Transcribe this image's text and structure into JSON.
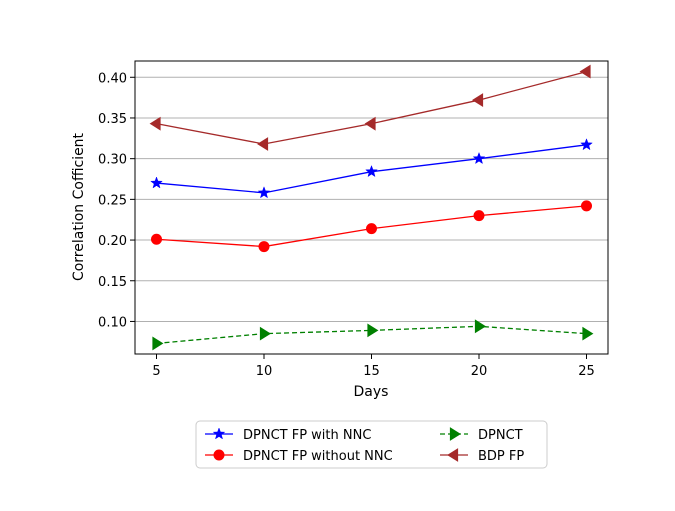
{
  "chart_data": {
    "type": "line",
    "title": "",
    "xlabel": "Days",
    "ylabel": "Correlation Cofficient",
    "x": [
      5,
      10,
      15,
      20,
      25
    ],
    "xlim": [
      4,
      26
    ],
    "ylim": [
      0.06,
      0.42
    ],
    "xticks": [
      5,
      10,
      15,
      20,
      25
    ],
    "yticks": [
      0.1,
      0.15,
      0.2,
      0.25,
      0.3,
      0.35,
      0.4
    ],
    "ytick_labels": [
      "0.10",
      "0.15",
      "0.20",
      "0.25",
      "0.30",
      "0.35",
      "0.40"
    ],
    "grid": "horizontal",
    "legend_position": "bottom-center",
    "series": [
      {
        "name": "DPNCT FP with NNC",
        "values": [
          0.27,
          0.258,
          0.284,
          0.3,
          0.317
        ],
        "color": "#0000ff",
        "marker": "star",
        "linestyle": "solid"
      },
      {
        "name": "DPNCT FP without NNC",
        "values": [
          0.201,
          0.192,
          0.214,
          0.23,
          0.242
        ],
        "color": "#ff0000",
        "marker": "circle",
        "linestyle": "solid"
      },
      {
        "name": "DPNCT",
        "values": [
          0.073,
          0.085,
          0.089,
          0.094,
          0.085
        ],
        "color": "#008000",
        "marker": "triangle-right",
        "linestyle": "dashed"
      },
      {
        "name": "BDP FP",
        "values": [
          0.343,
          0.318,
          0.343,
          0.372,
          0.407
        ],
        "color": "#a52a2a",
        "marker": "triangle-left",
        "linestyle": "solid"
      }
    ]
  }
}
